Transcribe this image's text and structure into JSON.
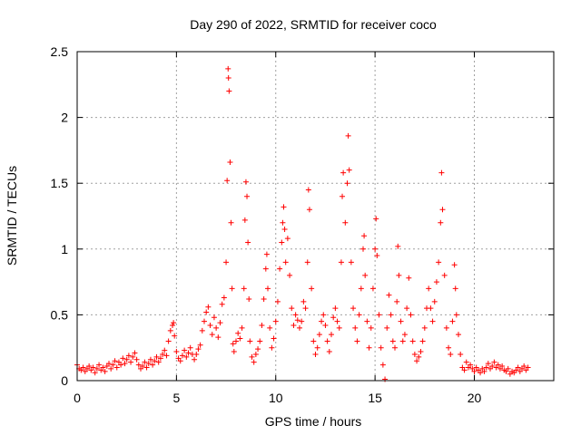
{
  "chart_data": {
    "type": "scatter",
    "title": "Day 290 of 2022, SRMTID for receiver coco",
    "xlabel": "GPS time / hours",
    "ylabel": "SRMTID / TECUs",
    "xlim": [
      0,
      24
    ],
    "ylim": [
      0,
      2.5
    ],
    "xticks": [
      0,
      5,
      10,
      15,
      20
    ],
    "yticks": [
      0,
      0.5,
      1,
      1.5,
      2,
      2.5
    ],
    "xtick_labels": [
      "0",
      "5",
      "10",
      "15",
      "20"
    ],
    "ytick_labels": [
      "0",
      "0.5",
      "1",
      "1.5",
      "2",
      "2.5"
    ],
    "grid": true,
    "marker": "+",
    "series": [
      {
        "name": "SRMTID",
        "color": "#ff0000",
        "points": [
          [
            0.0,
            0.12
          ],
          [
            0.1,
            0.09
          ],
          [
            0.2,
            0.08
          ],
          [
            0.3,
            0.1
          ],
          [
            0.4,
            0.07
          ],
          [
            0.5,
            0.09
          ],
          [
            0.6,
            0.11
          ],
          [
            0.7,
            0.08
          ],
          [
            0.8,
            0.1
          ],
          [
            0.9,
            0.06
          ],
          [
            1.0,
            0.09
          ],
          [
            1.1,
            0.12
          ],
          [
            1.2,
            0.08
          ],
          [
            1.3,
            0.1
          ],
          [
            1.4,
            0.07
          ],
          [
            1.5,
            0.11
          ],
          [
            1.6,
            0.13
          ],
          [
            1.7,
            0.09
          ],
          [
            1.8,
            0.12
          ],
          [
            1.9,
            0.15
          ],
          [
            2.0,
            0.1
          ],
          [
            2.1,
            0.14
          ],
          [
            2.2,
            0.12
          ],
          [
            2.3,
            0.17
          ],
          [
            2.4,
            0.13
          ],
          [
            2.5,
            0.16
          ],
          [
            2.6,
            0.19
          ],
          [
            2.7,
            0.14
          ],
          [
            2.8,
            0.18
          ],
          [
            2.9,
            0.21
          ],
          [
            3.0,
            0.16
          ],
          [
            3.1,
            0.12
          ],
          [
            3.2,
            0.09
          ],
          [
            3.3,
            0.11
          ],
          [
            3.4,
            0.14
          ],
          [
            3.5,
            0.1
          ],
          [
            3.6,
            0.13
          ],
          [
            3.7,
            0.16
          ],
          [
            3.8,
            0.12
          ],
          [
            3.9,
            0.15
          ],
          [
            4.0,
            0.18
          ],
          [
            4.1,
            0.14
          ],
          [
            4.2,
            0.17
          ],
          [
            4.3,
            0.2
          ],
          [
            4.4,
            0.23
          ],
          [
            4.5,
            0.19
          ],
          [
            4.6,
            0.3
          ],
          [
            4.7,
            0.38
          ],
          [
            4.8,
            0.42
          ],
          [
            4.85,
            0.44
          ],
          [
            4.9,
            0.34
          ],
          [
            5.0,
            0.22
          ],
          [
            5.1,
            0.17
          ],
          [
            5.2,
            0.15
          ],
          [
            5.3,
            0.19
          ],
          [
            5.4,
            0.23
          ],
          [
            5.5,
            0.18
          ],
          [
            5.6,
            0.21
          ],
          [
            5.7,
            0.25
          ],
          [
            5.8,
            0.2
          ],
          [
            5.9,
            0.16
          ],
          [
            6.0,
            0.2
          ],
          [
            6.1,
            0.24
          ],
          [
            6.2,
            0.27
          ],
          [
            6.3,
            0.38
          ],
          [
            6.4,
            0.45
          ],
          [
            6.5,
            0.52
          ],
          [
            6.6,
            0.56
          ],
          [
            6.7,
            0.42
          ],
          [
            6.8,
            0.35
          ],
          [
            6.9,
            0.48
          ],
          [
            7.0,
            0.4
          ],
          [
            7.1,
            0.33
          ],
          [
            7.2,
            0.44
          ],
          [
            7.3,
            0.58
          ],
          [
            7.4,
            0.63
          ],
          [
            7.5,
            0.9
          ],
          [
            7.55,
            1.52
          ],
          [
            7.6,
            2.37
          ],
          [
            7.62,
            2.3
          ],
          [
            7.65,
            2.2
          ],
          [
            7.7,
            1.66
          ],
          [
            7.75,
            1.2
          ],
          [
            7.8,
            0.7
          ],
          [
            7.85,
            0.28
          ],
          [
            7.9,
            0.22
          ],
          [
            8.0,
            0.3
          ],
          [
            8.1,
            0.36
          ],
          [
            8.2,
            0.32
          ],
          [
            8.3,
            0.4
          ],
          [
            8.4,
            0.7
          ],
          [
            8.45,
            1.22
          ],
          [
            8.5,
            1.51
          ],
          [
            8.55,
            1.4
          ],
          [
            8.6,
            1.05
          ],
          [
            8.65,
            0.62
          ],
          [
            8.7,
            0.3
          ],
          [
            8.8,
            0.18
          ],
          [
            8.9,
            0.14
          ],
          [
            9.0,
            0.2
          ],
          [
            9.1,
            0.24
          ],
          [
            9.2,
            0.3
          ],
          [
            9.3,
            0.42
          ],
          [
            9.4,
            0.62
          ],
          [
            9.5,
            0.85
          ],
          [
            9.55,
            0.96
          ],
          [
            9.6,
            0.7
          ],
          [
            9.7,
            0.4
          ],
          [
            9.8,
            0.25
          ],
          [
            9.9,
            0.32
          ],
          [
            10.0,
            0.45
          ],
          [
            10.1,
            0.6
          ],
          [
            10.2,
            0.85
          ],
          [
            10.3,
            1.05
          ],
          [
            10.35,
            1.2
          ],
          [
            10.4,
            1.32
          ],
          [
            10.45,
            1.15
          ],
          [
            10.5,
            0.9
          ],
          [
            10.6,
            1.08
          ],
          [
            10.7,
            0.8
          ],
          [
            10.8,
            0.55
          ],
          [
            10.9,
            0.42
          ],
          [
            11.0,
            0.5
          ],
          [
            11.1,
            0.46
          ],
          [
            11.2,
            0.4
          ],
          [
            11.3,
            0.45
          ],
          [
            11.4,
            0.6
          ],
          [
            11.5,
            0.55
          ],
          [
            11.6,
            0.9
          ],
          [
            11.65,
            1.45
          ],
          [
            11.7,
            1.3
          ],
          [
            11.8,
            0.7
          ],
          [
            11.9,
            0.3
          ],
          [
            12.0,
            0.2
          ],
          [
            12.1,
            0.25
          ],
          [
            12.2,
            0.35
          ],
          [
            12.3,
            0.45
          ],
          [
            12.4,
            0.5
          ],
          [
            12.5,
            0.42
          ],
          [
            12.6,
            0.3
          ],
          [
            12.7,
            0.22
          ],
          [
            12.8,
            0.35
          ],
          [
            12.9,
            0.48
          ],
          [
            13.0,
            0.55
          ],
          [
            13.1,
            0.45
          ],
          [
            13.2,
            0.4
          ],
          [
            13.3,
            0.9
          ],
          [
            13.35,
            1.4
          ],
          [
            13.4,
            1.58
          ],
          [
            13.5,
            1.2
          ],
          [
            13.6,
            1.5
          ],
          [
            13.65,
            1.86
          ],
          [
            13.7,
            1.6
          ],
          [
            13.8,
            0.9
          ],
          [
            13.9,
            0.55
          ],
          [
            14.0,
            0.4
          ],
          [
            14.1,
            0.3
          ],
          [
            14.2,
            0.5
          ],
          [
            14.3,
            0.7
          ],
          [
            14.4,
            1.0
          ],
          [
            14.45,
            1.1
          ],
          [
            14.5,
            0.8
          ],
          [
            14.6,
            0.45
          ],
          [
            14.7,
            0.25
          ],
          [
            14.8,
            0.4
          ],
          [
            14.9,
            0.7
          ],
          [
            15.0,
            1.0
          ],
          [
            15.05,
            1.23
          ],
          [
            15.1,
            0.95
          ],
          [
            15.2,
            0.5
          ],
          [
            15.3,
            0.25
          ],
          [
            15.4,
            0.12
          ],
          [
            15.5,
            0.01
          ],
          [
            15.6,
            0.4
          ],
          [
            15.7,
            0.65
          ],
          [
            15.8,
            0.5
          ],
          [
            15.9,
            0.3
          ],
          [
            16.0,
            0.25
          ],
          [
            16.1,
            0.6
          ],
          [
            16.15,
            1.02
          ],
          [
            16.2,
            0.8
          ],
          [
            16.3,
            0.45
          ],
          [
            16.4,
            0.3
          ],
          [
            16.5,
            0.35
          ],
          [
            16.6,
            0.55
          ],
          [
            16.7,
            0.78
          ],
          [
            16.8,
            0.5
          ],
          [
            16.9,
            0.3
          ],
          [
            17.0,
            0.2
          ],
          [
            17.1,
            0.15
          ],
          [
            17.2,
            0.18
          ],
          [
            17.3,
            0.22
          ],
          [
            17.4,
            0.3
          ],
          [
            17.5,
            0.4
          ],
          [
            17.6,
            0.55
          ],
          [
            17.7,
            0.7
          ],
          [
            17.8,
            0.55
          ],
          [
            17.9,
            0.45
          ],
          [
            18.0,
            0.6
          ],
          [
            18.1,
            0.75
          ],
          [
            18.2,
            0.9
          ],
          [
            18.3,
            1.2
          ],
          [
            18.35,
            1.58
          ],
          [
            18.4,
            1.3
          ],
          [
            18.5,
            0.8
          ],
          [
            18.6,
            0.4
          ],
          [
            18.7,
            0.25
          ],
          [
            18.8,
            0.2
          ],
          [
            18.9,
            0.45
          ],
          [
            19.0,
            0.88
          ],
          [
            19.05,
            0.7
          ],
          [
            19.1,
            0.5
          ],
          [
            19.2,
            0.35
          ],
          [
            19.3,
            0.2
          ],
          [
            19.4,
            0.1
          ],
          [
            19.5,
            0.08
          ],
          [
            19.6,
            0.14
          ],
          [
            19.7,
            0.1
          ],
          [
            19.8,
            0.12
          ],
          [
            19.9,
            0.09
          ],
          [
            20.0,
            0.07
          ],
          [
            20.1,
            0.1
          ],
          [
            20.2,
            0.08
          ],
          [
            20.3,
            0.06
          ],
          [
            20.4,
            0.09
          ],
          [
            20.5,
            0.07
          ],
          [
            20.6,
            0.1
          ],
          [
            20.7,
            0.13
          ],
          [
            20.8,
            0.09
          ],
          [
            20.9,
            0.11
          ],
          [
            21.0,
            0.14
          ],
          [
            21.1,
            0.1
          ],
          [
            21.2,
            0.12
          ],
          [
            21.3,
            0.09
          ],
          [
            21.4,
            0.11
          ],
          [
            21.5,
            0.08
          ],
          [
            21.6,
            0.07
          ],
          [
            21.7,
            0.09
          ],
          [
            21.8,
            0.05
          ],
          [
            21.9,
            0.07
          ],
          [
            22.0,
            0.06
          ],
          [
            22.1,
            0.08
          ],
          [
            22.2,
            0.1
          ],
          [
            22.3,
            0.07
          ],
          [
            22.4,
            0.09
          ],
          [
            22.5,
            0.11
          ],
          [
            22.6,
            0.08
          ],
          [
            22.7,
            0.1
          ]
        ]
      }
    ]
  }
}
